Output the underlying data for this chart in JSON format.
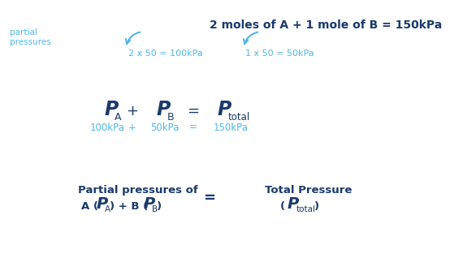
{
  "bg_color": "#ffffff",
  "dark_blue": "#1a3a6b",
  "light_blue": "#4db8e8",
  "title_text": "2 moles of A + 1 mole of B = 150kPa",
  "partial_label": "partial\npressures",
  "arrow1_text": "2 x 50 = 100kPa",
  "arrow2_text": "1 x 50 = 50kPa",
  "mid_PA": "$\\boldsymbol{P}$",
  "mid_sub_A": "A",
  "mid_PB": "$\\boldsymbol{P}$",
  "mid_sub_B": "B",
  "mid_Ptot": "$\\boldsymbol{P}$",
  "mid_sub_tot": "total",
  "val1": "100kPa",
  "val2": "50kPa",
  "val3": "150kPa",
  "bot_left1": "Partial pressures of",
  "bot_left2_pre": "A (",
  "bot_left2_P": "$\\boldsymbol{P}$",
  "bot_left2_sub": "A",
  "bot_left2_mid": ") + B (",
  "bot_left2_P2": "$\\boldsymbol{P}$",
  "bot_left2_sub2": "B",
  "bot_left2_end": ")",
  "bot_eq": "=",
  "bot_right1": "Total Pressure",
  "bot_right2_pre": "(",
  "bot_right2_P": "$\\boldsymbol{P}$",
  "bot_right2_sub": "total",
  "bot_right2_end": ")"
}
